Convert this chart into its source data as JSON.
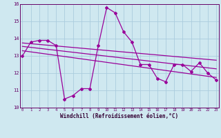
{
  "xlabel": "Windchill (Refroidissement éolien,°C)",
  "bg_color": "#cfe8f0",
  "grid_color": "#b0d8e8",
  "line_color": "#990099",
  "hours": [
    0,
    1,
    2,
    3,
    4,
    5,
    6,
    7,
    8,
    9,
    10,
    11,
    12,
    13,
    14,
    15,
    16,
    17,
    18,
    19,
    20,
    21,
    22,
    23
  ],
  "values": [
    13.0,
    13.8,
    13.9,
    13.9,
    13.6,
    10.5,
    10.7,
    11.1,
    11.1,
    13.6,
    15.8,
    15.5,
    14.4,
    13.8,
    12.5,
    12.5,
    11.7,
    11.5,
    12.5,
    12.5,
    12.1,
    12.6,
    12.0,
    11.6
  ],
  "trend1_start": 13.75,
  "trend1_end": 12.75,
  "trend2_start": 13.55,
  "trend2_end": 12.25,
  "trend3_start": 13.3,
  "trend3_end": 11.75,
  "ylim": [
    10,
    16
  ],
  "xlim": [
    0,
    23
  ]
}
